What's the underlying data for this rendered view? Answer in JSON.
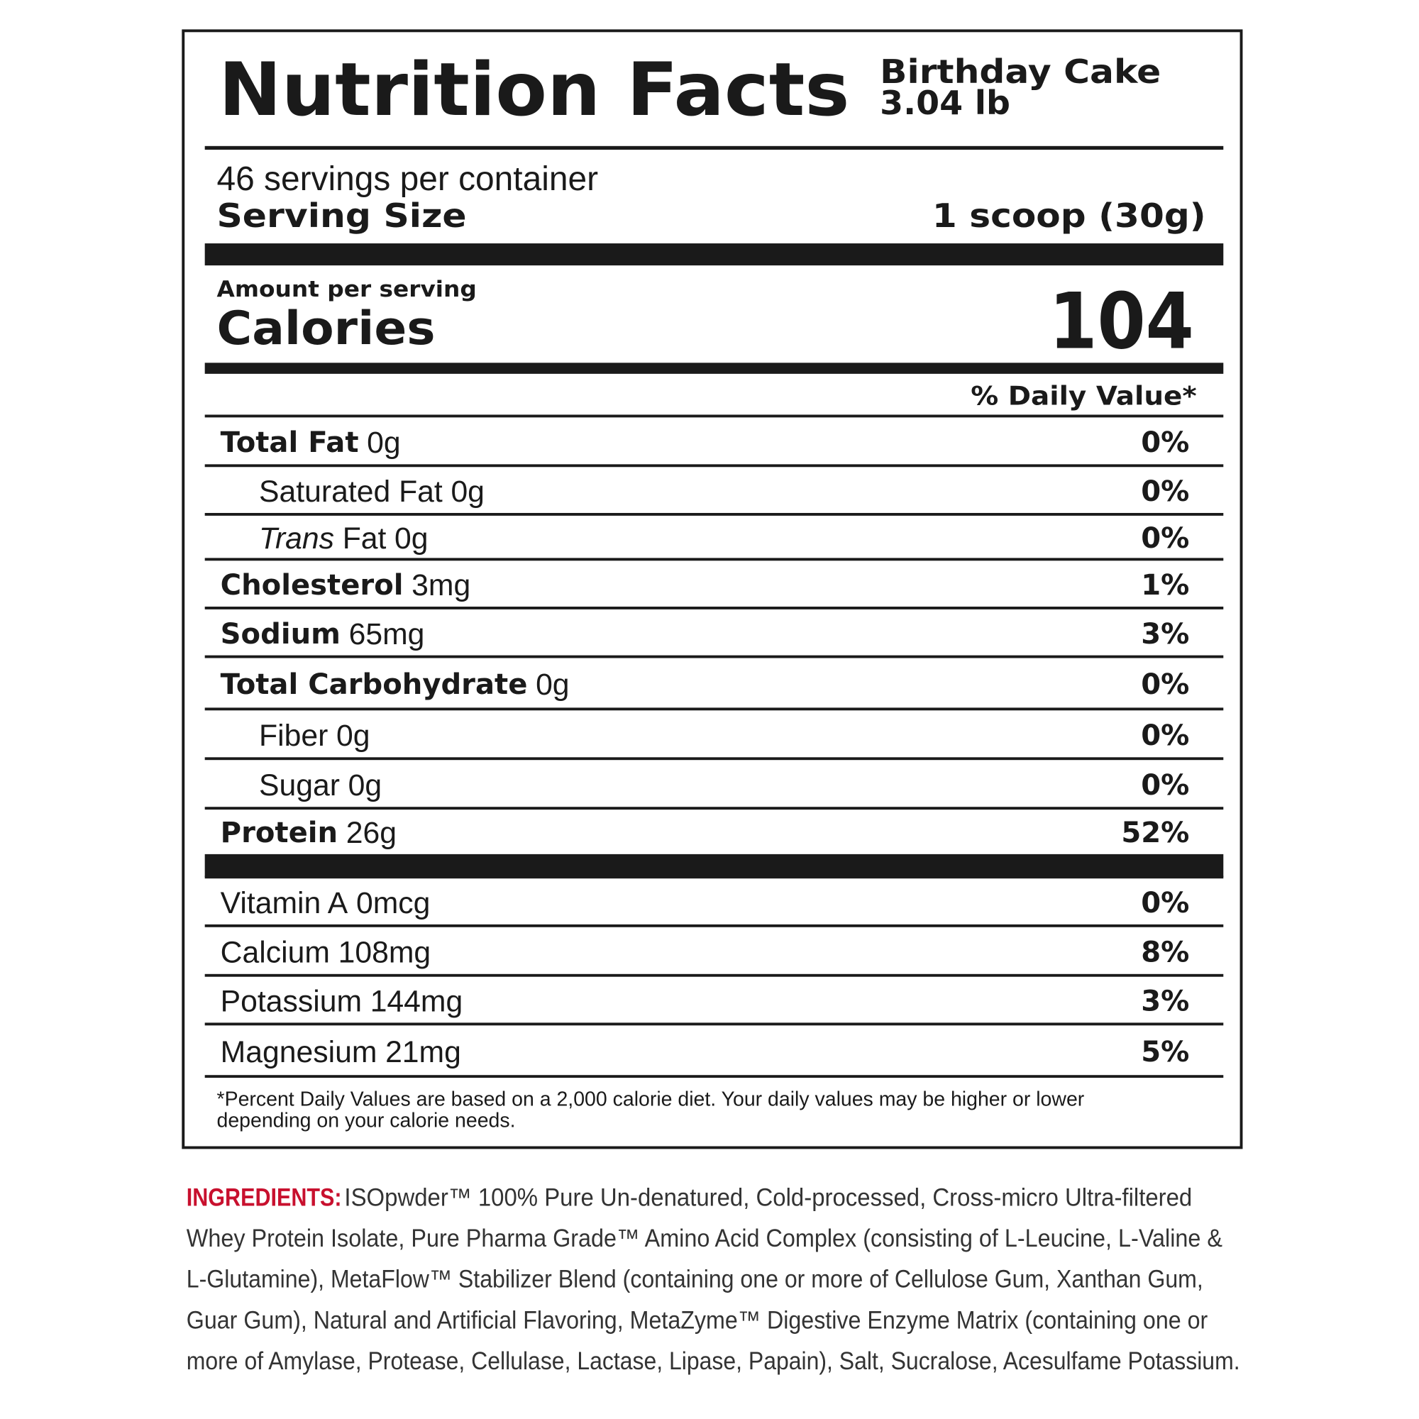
{
  "header": {
    "title": "Nutrition Facts",
    "product": "Birthday Cake",
    "weight": "3.04 lb"
  },
  "servings": "46 servings per container",
  "serving_size": {
    "label": "Serving Size",
    "value": "1 scoop (30g)"
  },
  "amount_per_serving": "Amount per serving",
  "calories": {
    "label": "Calories",
    "value": 104
  },
  "daily_value_header": "% Daily Value*",
  "nutrients": [
    {
      "name": "Total Fat",
      "amount": "0g",
      "dv": "0%"
    },
    {
      "name": "Saturated Fat",
      "amount": "0g",
      "dv": "0%"
    },
    {
      "name_italic": "Trans",
      "name": "Fat",
      "amount": "0g",
      "dv": "0%"
    },
    {
      "name": "Cholesterol",
      "amount": "3mg",
      "dv": "1%"
    },
    {
      "name": "Sodium",
      "amount": "65mg",
      "dv": "3%"
    },
    {
      "name": "Total Carbohydrate",
      "amount": "0g",
      "dv": "0%"
    },
    {
      "name": "Fiber",
      "amount": "0g",
      "dv": "0%"
    },
    {
      "name": "Sugar",
      "amount": "0g",
      "dv": "0%"
    },
    {
      "name": "Protein",
      "amount": "26g",
      "dv": "52%"
    }
  ],
  "vitamins": [
    {
      "name": "Vitamin A",
      "amount": "0mcg",
      "dv": "0%"
    },
    {
      "name": "Calcium",
      "amount": "108mg",
      "dv": "8%"
    },
    {
      "name": "Potassium",
      "amount": "144mg",
      "dv": "3%"
    },
    {
      "name": "Magnesium",
      "amount": "21mg",
      "dv": "5%"
    }
  ],
  "footnote": [
    "*Percent Daily Values are based on a 2,000 calorie diet. Your daily values may be higher or lower",
    "depending on your calorie needs."
  ],
  "ingredients": {
    "label": "INGREDIENTS:",
    "lines": [
      "ISOpwder™ 100% Pure Un-denatured, Cold-processed, Cross-micro Ultra-filtered",
      "Whey Protein Isolate, Pure Pharma Grade™ Amino Acid Complex (consisting of L-Leucine, L-Valine &",
      "L-Glutamine), MetaFlow™ Stabilizer Blend (containing one or more of Cellulose Gum, Xanthan Gum,",
      "Guar Gum), Natural and Artificial Flavoring, MetaZyme™ Digestive Enzyme Matrix (containing one or",
      "more of Amylase, Protease, Cellulase, Lactase, Lipase, Papain), Salt, Sucralose, Acesulfame Potassium."
    ]
  }
}
